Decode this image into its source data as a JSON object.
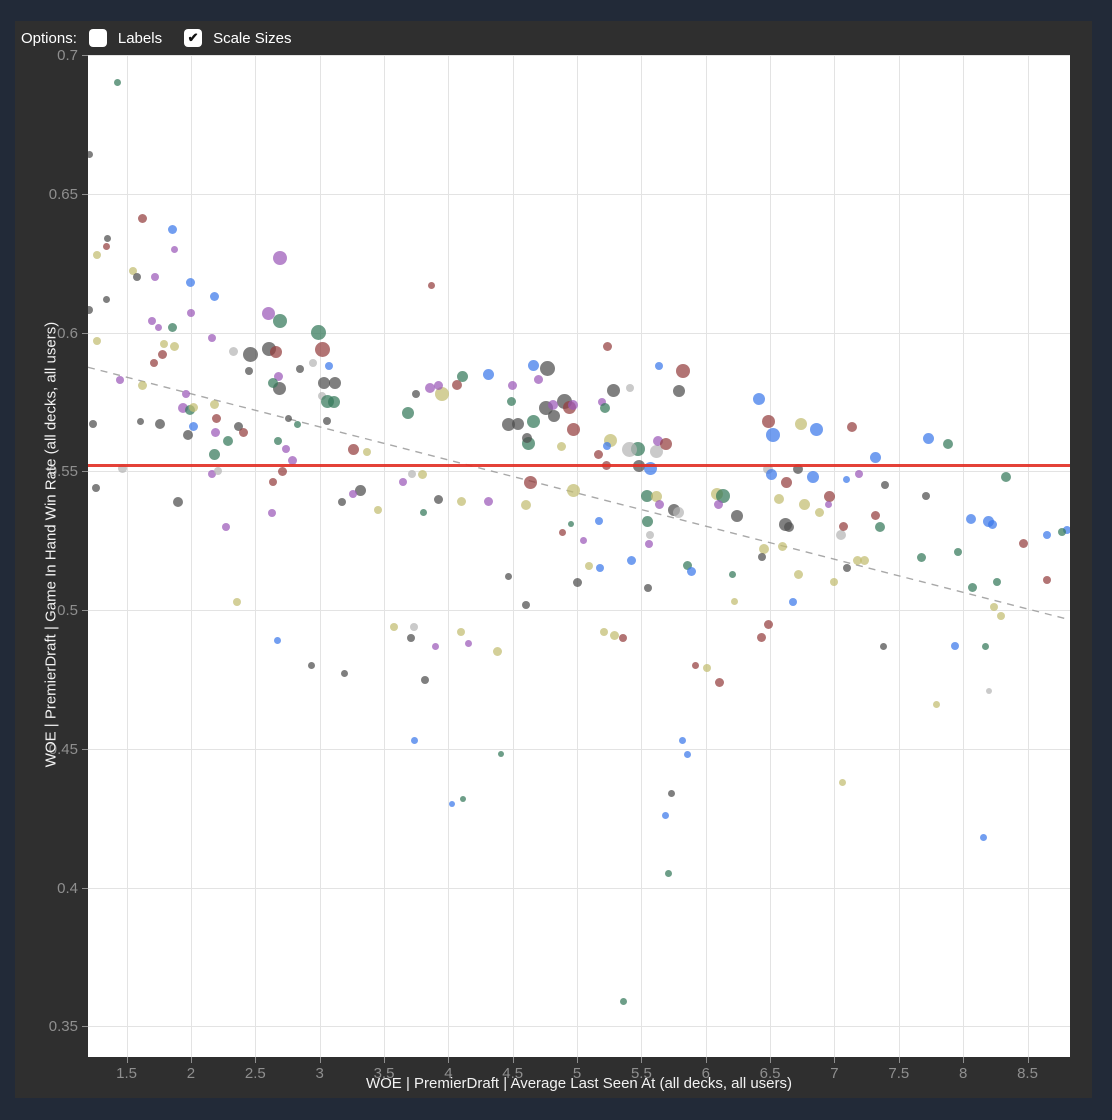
{
  "page": {
    "background": "#222a38",
    "panel_background": "#2f2f2f"
  },
  "options_bar": {
    "label": "Options:",
    "checkboxes": [
      {
        "label": "Labels",
        "checked": false
      },
      {
        "label": "Scale Sizes",
        "checked": true
      }
    ],
    "check_glyph": "✔"
  },
  "chart_data": {
    "type": "scatter",
    "title": "",
    "xlabel": "WOE | PremierDraft | Average Last Seen At (all decks, all users)",
    "ylabel": "WOE | PremierDraft | Game In Hand Win Rate (all decks, all users)",
    "xlim": [
      1.2,
      8.83
    ],
    "ylim": [
      0.339,
      0.7
    ],
    "grid": true,
    "x_ticks": [
      1.5,
      2,
      2.5,
      3,
      3.5,
      4,
      4.5,
      5,
      5.5,
      6,
      6.5,
      7,
      7.5,
      8,
      8.5
    ],
    "x_tick_labels": [
      "1.5",
      "2",
      "2.5",
      "3",
      "3.5",
      "4",
      "4.5",
      "5",
      "5.5",
      "6",
      "6.5",
      "7",
      "7.5",
      "8",
      "8.5"
    ],
    "y_ticks": [
      0.35,
      0.4,
      0.45,
      0.5,
      0.55,
      0.6,
      0.65,
      0.7
    ],
    "y_tick_labels": [
      "0.35",
      "0.4",
      "0.45",
      "0.5",
      "0.55",
      "0.6",
      "0.65",
      "0.7"
    ],
    "reference_line_y": 0.5523,
    "trend_line": {
      "x1": 1.2,
      "y1": 0.5875,
      "x2": 8.83,
      "y2": 0.4965,
      "style": "dashed",
      "color": "#9a9a9a"
    },
    "colors": {
      "gy": "#4d4d4d",
      "lg": "#b5b5b5",
      "gn": "#35785a",
      "bl": "#3b78ea",
      "pu": "#9b59b8",
      "ma": "#943f3f",
      "kh": "#c2bd70"
    },
    "point_opacity": 0.72,
    "points": [
      [
        1.43,
        0.69,
        "gn",
        3.5
      ],
      [
        1.21,
        0.664,
        "gy",
        3.5
      ],
      [
        1.62,
        0.641,
        "ma",
        4.5
      ],
      [
        1.86,
        0.637,
        "bl",
        4.5
      ],
      [
        1.35,
        0.634,
        "gy",
        3.5
      ],
      [
        1.34,
        0.631,
        "ma",
        3.5
      ],
      [
        1.27,
        0.628,
        "kh",
        4
      ],
      [
        1.87,
        0.63,
        "pu",
        3.5
      ],
      [
        2.69,
        0.627,
        "pu",
        7
      ],
      [
        1.55,
        0.622,
        "kh",
        4
      ],
      [
        1.58,
        0.62,
        "gy",
        4
      ],
      [
        1.72,
        0.62,
        "pu",
        4
      ],
      [
        2.0,
        0.618,
        "bl",
        4.5
      ],
      [
        2.18,
        0.613,
        "bl",
        4.5
      ],
      [
        1.34,
        0.612,
        "gy",
        3.5
      ],
      [
        1.21,
        0.608,
        "gy",
        4
      ],
      [
        1.7,
        0.604,
        "pu",
        4
      ],
      [
        1.75,
        0.602,
        "pu",
        3.5
      ],
      [
        1.86,
        0.602,
        "gn",
        4.5
      ],
      [
        2.0,
        0.607,
        "pu",
        4
      ],
      [
        2.69,
        0.604,
        "gn",
        7
      ],
      [
        2.6,
        0.607,
        "pu",
        6.5
      ],
      [
        2.99,
        0.6,
        "gn",
        7.5
      ],
      [
        2.16,
        0.598,
        "pu",
        4
      ],
      [
        1.27,
        0.597,
        "kh",
        4
      ],
      [
        3.87,
        0.617,
        "ma",
        3.5
      ],
      [
        2.85,
        0.587,
        "gy",
        4
      ],
      [
        1.79,
        0.596,
        "kh",
        4
      ],
      [
        1.87,
        0.595,
        "kh",
        4.5
      ],
      [
        1.78,
        0.592,
        "ma",
        4.5
      ],
      [
        1.71,
        0.589,
        "ma",
        4
      ],
      [
        1.45,
        0.583,
        "pu",
        4
      ],
      [
        1.62,
        0.581,
        "kh",
        4.5
      ],
      [
        1.96,
        0.578,
        "pu",
        4
      ],
      [
        2.33,
        0.593,
        "lg",
        4.5
      ],
      [
        2.46,
        0.592,
        "gy",
        7.5
      ],
      [
        2.61,
        0.594,
        "gy",
        7
      ],
      [
        2.66,
        0.593,
        "ma",
        6
      ],
      [
        3.02,
        0.594,
        "ma",
        7.5
      ],
      [
        2.45,
        0.586,
        "gy",
        4
      ],
      [
        2.68,
        0.584,
        "pu",
        4.5
      ],
      [
        2.69,
        0.58,
        "gy",
        6.5
      ],
      [
        2.64,
        0.582,
        "gn",
        5
      ],
      [
        2.95,
        0.589,
        "lg",
        4
      ],
      [
        3.07,
        0.588,
        "bl",
        4
      ],
      [
        3.03,
        0.582,
        "gy",
        6
      ],
      [
        3.12,
        0.582,
        "gy",
        6
      ],
      [
        3.02,
        0.577,
        "lg",
        4
      ],
      [
        3.06,
        0.575,
        "gn",
        6.5
      ],
      [
        3.11,
        0.575,
        "gn",
        6
      ],
      [
        3.06,
        0.568,
        "gy",
        4
      ],
      [
        1.94,
        0.573,
        "pu",
        5
      ],
      [
        1.99,
        0.572,
        "gn",
        5
      ],
      [
        2.02,
        0.573,
        "kh",
        4.5
      ],
      [
        2.18,
        0.574,
        "kh",
        4.5
      ],
      [
        1.61,
        0.568,
        "gy",
        3.5
      ],
      [
        1.76,
        0.567,
        "gy",
        5
      ],
      [
        2.2,
        0.569,
        "ma",
        4.5
      ],
      [
        2.02,
        0.566,
        "bl",
        4.5
      ],
      [
        1.98,
        0.563,
        "gy",
        5
      ],
      [
        2.19,
        0.564,
        "pu",
        4.5
      ],
      [
        2.29,
        0.561,
        "gn",
        5
      ],
      [
        2.37,
        0.566,
        "gy",
        4.5
      ],
      [
        2.41,
        0.564,
        "ma",
        4.5
      ],
      [
        2.68,
        0.561,
        "gn",
        4
      ],
      [
        2.18,
        0.556,
        "gn",
        5.5
      ],
      [
        2.74,
        0.558,
        "pu",
        4
      ],
      [
        2.79,
        0.554,
        "pu",
        4.5
      ],
      [
        2.76,
        0.569,
        "gy",
        3.5
      ],
      [
        2.83,
        0.567,
        "gn",
        3.5
      ],
      [
        1.24,
        0.567,
        "gy",
        4
      ],
      [
        1.26,
        0.544,
        "gy",
        4
      ],
      [
        1.47,
        0.551,
        "lg",
        4.5
      ],
      [
        2.16,
        0.549,
        "pu",
        4
      ],
      [
        2.21,
        0.55,
        "lg",
        4
      ],
      [
        2.71,
        0.55,
        "ma",
        4.5
      ],
      [
        2.64,
        0.546,
        "ma",
        4
      ],
      [
        1.9,
        0.539,
        "gy",
        5
      ],
      [
        2.63,
        0.535,
        "pu",
        4
      ],
      [
        2.27,
        0.53,
        "pu",
        4
      ],
      [
        2.36,
        0.503,
        "kh",
        4
      ],
      [
        3.32,
        0.543,
        "gy",
        5.5
      ],
      [
        3.37,
        0.557,
        "kh",
        4
      ],
      [
        3.26,
        0.558,
        "ma",
        5.5
      ],
      [
        3.17,
        0.539,
        "gy",
        4
      ],
      [
        3.26,
        0.542,
        "pu",
        4
      ],
      [
        3.45,
        0.536,
        "kh",
        4
      ],
      [
        3.65,
        0.546,
        "pu",
        4
      ],
      [
        3.72,
        0.549,
        "lg",
        4
      ],
      [
        5.24,
        0.595,
        "ma",
        4.5
      ],
      [
        5.82,
        0.586,
        "ma",
        7
      ],
      [
        5.41,
        0.58,
        "lg",
        4
      ],
      [
        4.66,
        0.588,
        "bl",
        5.5
      ],
      [
        4.77,
        0.587,
        "gy",
        7.5
      ],
      [
        4.7,
        0.583,
        "pu",
        4.5
      ],
      [
        4.31,
        0.585,
        "bl",
        5.5
      ],
      [
        4.11,
        0.584,
        "gn",
        5.5
      ],
      [
        4.5,
        0.581,
        "pu",
        4.5
      ],
      [
        5.79,
        0.579,
        "gy",
        6
      ],
      [
        5.64,
        0.588,
        "bl",
        4
      ],
      [
        4.49,
        0.575,
        "gn",
        4.5
      ],
      [
        4.76,
        0.573,
        "gy",
        7
      ],
      [
        4.9,
        0.575,
        "gy",
        7.5
      ],
      [
        4.81,
        0.574,
        "pu",
        5
      ],
      [
        4.94,
        0.573,
        "ma",
        6.5
      ],
      [
        4.97,
        0.574,
        "pu",
        5
      ],
      [
        5.28,
        0.579,
        "gy",
        6.5
      ],
      [
        5.19,
        0.575,
        "pu",
        4
      ],
      [
        5.22,
        0.573,
        "gn",
        5
      ],
      [
        4.82,
        0.57,
        "gy",
        6
      ],
      [
        4.66,
        0.568,
        "gn",
        6.5
      ],
      [
        4.47,
        0.567,
        "gy",
        6.5
      ],
      [
        4.54,
        0.567,
        "gy",
        6
      ],
      [
        4.97,
        0.565,
        "ma",
        6.5
      ],
      [
        4.62,
        0.56,
        "gn",
        6.5
      ],
      [
        4.61,
        0.562,
        "gy",
        5
      ],
      [
        4.88,
        0.559,
        "kh",
        4.5
      ],
      [
        5.26,
        0.561,
        "kh",
        6.5
      ],
      [
        5.23,
        0.559,
        "bl",
        4
      ],
      [
        5.47,
        0.558,
        "gn",
        7
      ],
      [
        5.41,
        0.558,
        "lg",
        7.5
      ],
      [
        5.62,
        0.557,
        "lg",
        6.5
      ],
      [
        5.63,
        0.561,
        "pu",
        5
      ],
      [
        5.69,
        0.56,
        "ma",
        6
      ],
      [
        5.17,
        0.556,
        "ma",
        4.5
      ],
      [
        5.48,
        0.552,
        "gy",
        6
      ],
      [
        5.57,
        0.551,
        "bl",
        6.5
      ],
      [
        5.23,
        0.552,
        "ma",
        4.5
      ],
      [
        3.86,
        0.58,
        "pu",
        5
      ],
      [
        3.95,
        0.578,
        "kh",
        7
      ],
      [
        3.92,
        0.581,
        "pu",
        4.5
      ],
      [
        4.07,
        0.581,
        "ma",
        5
      ],
      [
        3.75,
        0.578,
        "gy",
        4
      ],
      [
        3.69,
        0.571,
        "gn",
        6
      ],
      [
        4.64,
        0.546,
        "ma",
        6.5
      ],
      [
        4.97,
        0.543,
        "kh",
        6.5
      ],
      [
        5.54,
        0.541,
        "gn",
        6
      ],
      [
        5.62,
        0.541,
        "kh",
        5.5
      ],
      [
        5.64,
        0.538,
        "pu",
        4.5
      ],
      [
        5.75,
        0.536,
        "gy",
        6
      ],
      [
        5.79,
        0.535,
        "lg",
        5.5
      ],
      [
        4.6,
        0.538,
        "kh",
        5
      ],
      [
        4.31,
        0.539,
        "pu",
        4.5
      ],
      [
        4.1,
        0.539,
        "kh",
        4.5
      ],
      [
        3.92,
        0.54,
        "gy",
        4.5
      ],
      [
        3.8,
        0.549,
        "kh",
        4.5
      ],
      [
        3.81,
        0.535,
        "gn",
        3.5
      ],
      [
        4.89,
        0.528,
        "ma",
        3.5
      ],
      [
        4.95,
        0.531,
        "gn",
        3
      ],
      [
        5.05,
        0.525,
        "pu",
        3.5
      ],
      [
        5.17,
        0.532,
        "bl",
        4
      ],
      [
        5.42,
        0.518,
        "bl",
        4.5
      ],
      [
        5.56,
        0.524,
        "pu",
        4
      ],
      [
        5.55,
        0.532,
        "gn",
        5.5
      ],
      [
        5.57,
        0.527,
        "lg",
        4
      ],
      [
        4.47,
        0.512,
        "gy",
        3.5
      ],
      [
        5.0,
        0.51,
        "gy",
        4.5
      ],
      [
        5.09,
        0.516,
        "kh",
        4
      ],
      [
        5.18,
        0.515,
        "bl",
        4
      ],
      [
        5.55,
        0.508,
        "gy",
        4
      ],
      [
        5.86,
        0.516,
        "gn",
        4.5
      ],
      [
        5.89,
        0.514,
        "bl",
        4.5
      ],
      [
        6.21,
        0.513,
        "gn",
        3.5
      ],
      [
        6.22,
        0.503,
        "kh",
        3.5
      ],
      [
        6.09,
        0.542,
        "kh",
        6
      ],
      [
        6.13,
        0.541,
        "gn",
        7
      ],
      [
        6.1,
        0.538,
        "pu",
        4.5
      ],
      [
        6.24,
        0.534,
        "gy",
        6
      ],
      [
        4.6,
        0.502,
        "gy",
        4
      ],
      [
        5.21,
        0.492,
        "kh",
        4
      ],
      [
        6.41,
        0.576,
        "bl",
        6
      ],
      [
        6.49,
        0.568,
        "ma",
        6.5
      ],
      [
        6.74,
        0.567,
        "kh",
        6
      ],
      [
        6.86,
        0.565,
        "bl",
        6.5
      ],
      [
        7.14,
        0.566,
        "ma",
        5
      ],
      [
        6.52,
        0.563,
        "bl",
        7
      ],
      [
        7.73,
        0.562,
        "bl",
        5.5
      ],
      [
        7.88,
        0.56,
        "gn",
        5
      ],
      [
        7.32,
        0.555,
        "bl",
        5.5
      ],
      [
        6.48,
        0.551,
        "lg",
        5
      ],
      [
        8.33,
        0.548,
        "gn",
        5
      ],
      [
        6.72,
        0.551,
        "gy",
        5
      ],
      [
        6.51,
        0.549,
        "bl",
        5.5
      ],
      [
        6.83,
        0.548,
        "bl",
        6
      ],
      [
        6.63,
        0.546,
        "ma",
        5.5
      ],
      [
        7.09,
        0.547,
        "bl",
        3.5
      ],
      [
        7.39,
        0.545,
        "gy",
        4
      ],
      [
        6.57,
        0.54,
        "kh",
        5
      ],
      [
        6.77,
        0.538,
        "kh",
        5.5
      ],
      [
        6.96,
        0.541,
        "ma",
        5.5
      ],
      [
        7.71,
        0.541,
        "gy",
        4
      ],
      [
        6.88,
        0.535,
        "kh",
        4.5
      ],
      [
        6.95,
        0.538,
        "pu",
        3.5
      ],
      [
        6.62,
        0.531,
        "gy",
        6.5
      ],
      [
        6.65,
        0.53,
        "gy",
        5
      ],
      [
        6.6,
        0.523,
        "kh",
        4.5
      ],
      [
        6.45,
        0.522,
        "kh",
        5
      ],
      [
        6.44,
        0.519,
        "gy",
        4
      ],
      [
        7.05,
        0.527,
        "lg",
        5
      ],
      [
        7.07,
        0.53,
        "ma",
        4.5
      ],
      [
        7.18,
        0.518,
        "kh",
        4.5
      ],
      [
        7.23,
        0.518,
        "kh",
        4.5
      ],
      [
        7.35,
        0.53,
        "gn",
        5
      ],
      [
        7.32,
        0.534,
        "ma",
        4.5
      ],
      [
        7.68,
        0.519,
        "gn",
        4.5
      ],
      [
        7.96,
        0.521,
        "gn",
        4
      ],
      [
        7.1,
        0.515,
        "gy",
        4
      ],
      [
        6.72,
        0.513,
        "kh",
        4.5
      ],
      [
        7.0,
        0.51,
        "kh",
        4
      ],
      [
        7.19,
        0.549,
        "pu",
        4
      ],
      [
        8.06,
        0.533,
        "bl",
        5
      ],
      [
        8.2,
        0.532,
        "bl",
        5.5
      ],
      [
        8.23,
        0.531,
        "bl",
        4.5
      ],
      [
        8.81,
        0.529,
        "bl",
        4
      ],
      [
        8.77,
        0.528,
        "gn",
        4
      ],
      [
        8.65,
        0.527,
        "bl",
        4
      ],
      [
        8.47,
        0.524,
        "ma",
        4.5
      ],
      [
        8.65,
        0.511,
        "ma",
        4
      ],
      [
        8.26,
        0.51,
        "gn",
        4
      ],
      [
        8.07,
        0.508,
        "gn",
        4.5
      ],
      [
        8.24,
        0.501,
        "kh",
        4
      ],
      [
        8.29,
        0.498,
        "kh",
        4
      ],
      [
        6.68,
        0.503,
        "bl",
        4
      ],
      [
        3.58,
        0.494,
        "kh",
        4
      ],
      [
        3.73,
        0.494,
        "lg",
        4
      ],
      [
        2.67,
        0.489,
        "bl",
        3.5
      ],
      [
        3.71,
        0.49,
        "gy",
        4
      ],
      [
        3.9,
        0.487,
        "pu",
        3.5
      ],
      [
        2.94,
        0.48,
        "gy",
        3.5
      ],
      [
        3.19,
        0.477,
        "gy",
        3.5
      ],
      [
        3.82,
        0.475,
        "gy",
        4
      ],
      [
        3.74,
        0.453,
        "bl",
        3.5
      ],
      [
        4.1,
        0.492,
        "kh",
        4
      ],
      [
        4.16,
        0.488,
        "pu",
        3.5
      ],
      [
        4.38,
        0.485,
        "kh",
        4.5
      ],
      [
        5.29,
        0.491,
        "kh",
        4.5
      ],
      [
        5.36,
        0.49,
        "ma",
        4
      ],
      [
        5.92,
        0.48,
        "ma",
        3.5
      ],
      [
        6.01,
        0.479,
        "kh",
        4
      ],
      [
        6.11,
        0.474,
        "ma",
        4.5
      ],
      [
        6.43,
        0.49,
        "ma",
        4.5
      ],
      [
        6.49,
        0.495,
        "ma",
        4.5
      ],
      [
        5.82,
        0.453,
        "bl",
        3.5
      ],
      [
        5.86,
        0.448,
        "bl",
        3.5
      ],
      [
        5.73,
        0.434,
        "gy",
        3.5
      ],
      [
        5.69,
        0.426,
        "bl",
        3.5
      ],
      [
        5.71,
        0.405,
        "gn",
        3.5
      ],
      [
        4.41,
        0.448,
        "gn",
        3
      ],
      [
        4.11,
        0.432,
        "gn",
        3
      ],
      [
        4.03,
        0.43,
        "bl",
        3
      ],
      [
        7.38,
        0.487,
        "gy",
        3.5
      ],
      [
        7.94,
        0.487,
        "bl",
        4
      ],
      [
        8.17,
        0.487,
        "gn",
        3.5
      ],
      [
        8.2,
        0.471,
        "lg",
        3
      ],
      [
        7.79,
        0.466,
        "kh",
        3.5
      ],
      [
        7.06,
        0.438,
        "kh",
        3.5
      ],
      [
        8.16,
        0.418,
        "bl",
        3.5
      ],
      [
        5.36,
        0.359,
        "gn",
        3.5
      ]
    ]
  }
}
